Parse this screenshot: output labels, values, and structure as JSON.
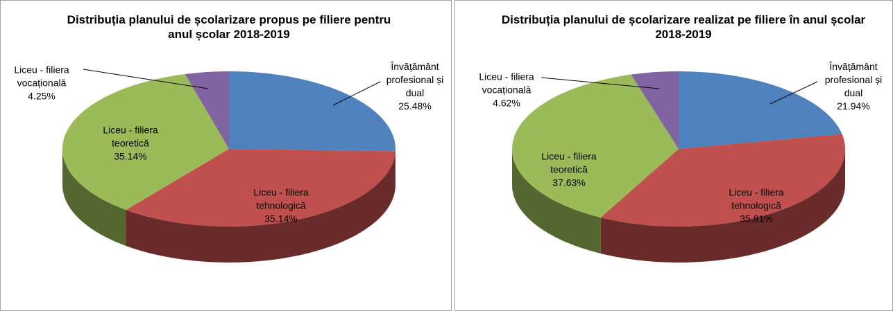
{
  "chart_data": [
    {
      "type": "pie3d",
      "title": "Distribuția planului de școlarizare propus pe filiere pentru anul școlar 2018-2019",
      "categories": [
        "Învățământ profesional și dual",
        "Liceu - filiera tehnologică",
        "Liceu - filiera teoretică",
        "Liceu - filiera vocațională"
      ],
      "values": [
        25.48,
        35.14,
        35.14,
        4.25
      ],
      "value_labels": [
        "25.48%",
        "35.14%",
        "35.14%",
        "4.25%"
      ],
      "colors": [
        "#4f81bd",
        "#c0504d",
        "#9bbb59",
        "#8064a2"
      ]
    },
    {
      "type": "pie3d",
      "title": "Distribuția planului de școlarizare realizat pe filiere în anul școlar 2018-2019",
      "categories": [
        "Învățământ profesional și dual",
        "Liceu - filiera tehnologică",
        "Liceu - filiera teoretică",
        "Liceu - filiera vocațională"
      ],
      "values": [
        21.94,
        35.81,
        37.63,
        4.62
      ],
      "value_labels": [
        "21.94%",
        "35.81%",
        "37.63%",
        "4.62%"
      ],
      "colors": [
        "#4f81bd",
        "#c0504d",
        "#9bbb59",
        "#8064a2"
      ]
    }
  ]
}
